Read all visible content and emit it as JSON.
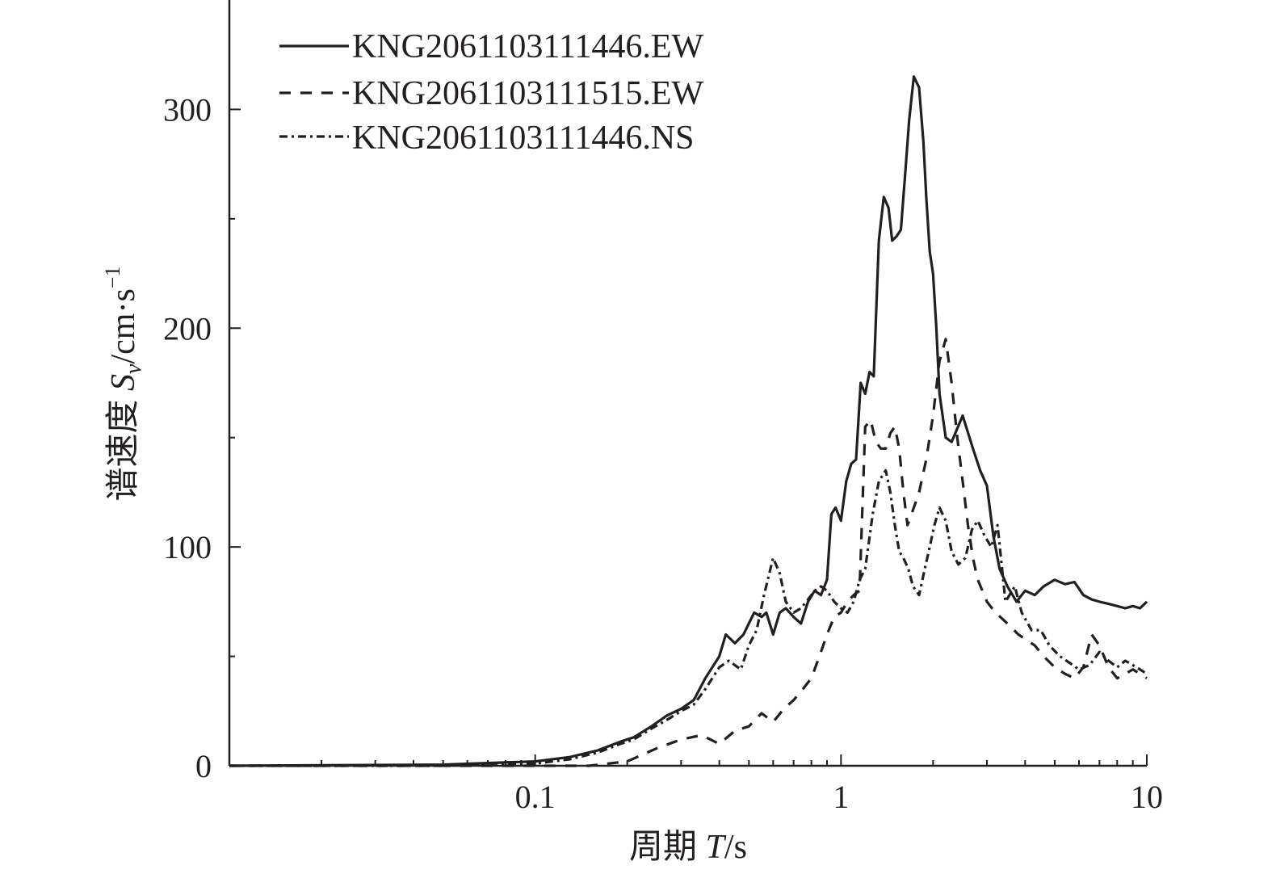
{
  "chart_data": {
    "type": "line",
    "title": "",
    "xlabel_prefix": "周期 ",
    "xlabel_var": "T",
    "xlabel_unit": "/s",
    "ylabel_prefix": "谱速度 ",
    "ylabel_var": "S",
    "ylabel_sub": "v",
    "ylabel_unit": "/cm·s",
    "ylabel_sup": "−1",
    "x_scale": "log",
    "xlim": [
      0.01,
      10
    ],
    "ylim": [
      0,
      350
    ],
    "x_ticks": [
      {
        "value": 0.1,
        "label": "0.1"
      },
      {
        "value": 1,
        "label": "1"
      },
      {
        "value": 10,
        "label": "10"
      }
    ],
    "y_ticks": [
      {
        "value": 0,
        "label": "0"
      },
      {
        "value": 100,
        "label": "100"
      },
      {
        "value": 200,
        "label": "200"
      },
      {
        "value": 300,
        "label": "300"
      }
    ],
    "grid": false,
    "legend_position": "top-left",
    "series": [
      {
        "name": "KNG2061103111446.EW",
        "dash": "solid",
        "x": [
          0.01,
          0.05,
          0.1,
          0.13,
          0.16,
          0.19,
          0.21,
          0.24,
          0.27,
          0.3,
          0.33,
          0.36,
          0.4,
          0.42,
          0.45,
          0.48,
          0.52,
          0.55,
          0.57,
          0.6,
          0.63,
          0.66,
          0.7,
          0.74,
          0.78,
          0.82,
          0.86,
          0.9,
          0.93,
          0.96,
          1.0,
          1.04,
          1.08,
          1.12,
          1.16,
          1.2,
          1.24,
          1.28,
          1.33,
          1.38,
          1.43,
          1.47,
          1.52,
          1.57,
          1.62,
          1.67,
          1.73,
          1.8,
          1.86,
          1.9,
          1.95,
          2.0,
          2.05,
          2.1,
          2.2,
          2.3,
          2.5,
          2.7,
          2.85,
          3.0,
          3.15,
          3.3,
          3.5,
          3.75,
          4.0,
          4.3,
          4.6,
          5.0,
          5.4,
          5.8,
          6.2,
          6.6,
          7.0,
          7.5,
          8.0,
          8.5,
          9.0,
          9.5,
          10.0
        ],
        "y": [
          0,
          0.5,
          2,
          4,
          7,
          11,
          13,
          18,
          23,
          26,
          30,
          40,
          50,
          60,
          56,
          60,
          70,
          68,
          70,
          60,
          70,
          72,
          68,
          65,
          75,
          80,
          78,
          85,
          115,
          118,
          112,
          130,
          138,
          140,
          175,
          170,
          180,
          178,
          240,
          260,
          255,
          240,
          242,
          245,
          270,
          295,
          315,
          310,
          285,
          260,
          235,
          225,
          200,
          170,
          150,
          148,
          160,
          145,
          135,
          128,
          105,
          90,
          82,
          75,
          80,
          78,
          82,
          85,
          83,
          84,
          78,
          76,
          75,
          74,
          73,
          72,
          73,
          72,
          75
        ]
      },
      {
        "name": "KNG2061103111515.EW",
        "dash": "14,12",
        "x": [
          0.01,
          0.1,
          0.15,
          0.2,
          0.25,
          0.3,
          0.35,
          0.4,
          0.45,
          0.5,
          0.55,
          0.6,
          0.65,
          0.7,
          0.75,
          0.8,
          0.85,
          0.9,
          0.95,
          1.0,
          1.05,
          1.1,
          1.15,
          1.2,
          1.25,
          1.3,
          1.35,
          1.4,
          1.45,
          1.5,
          1.55,
          1.6,
          1.65,
          1.7,
          1.75,
          1.8,
          1.9,
          2.0,
          2.1,
          2.2,
          2.3,
          2.4,
          2.5,
          2.6,
          2.7,
          2.8,
          2.9,
          3.0,
          3.2,
          3.5,
          3.8,
          4.0,
          4.3,
          4.6,
          5.0,
          5.4,
          5.8,
          6.2,
          6.6,
          7.0,
          7.5,
          8.0,
          8.5,
          9.0,
          9.5,
          10.0
        ],
        "y": [
          0,
          0,
          0,
          2,
          8,
          12,
          14,
          10,
          16,
          18,
          24,
          20,
          26,
          30,
          35,
          40,
          50,
          60,
          68,
          70,
          75,
          78,
          80,
          155,
          158,
          148,
          145,
          145,
          152,
          155,
          145,
          125,
          110,
          115,
          120,
          125,
          140,
          160,
          185,
          195,
          175,
          150,
          130,
          110,
          95,
          85,
          80,
          75,
          70,
          65,
          60,
          58,
          55,
          50,
          45,
          42,
          40,
          45,
          60,
          55,
          45,
          40,
          42,
          44,
          42,
          40
        ]
      },
      {
        "name": "KNG2061103111446.NS",
        "dash": "10,5,3,5",
        "x": [
          0.01,
          0.05,
          0.1,
          0.13,
          0.16,
          0.19,
          0.21,
          0.24,
          0.27,
          0.3,
          0.33,
          0.36,
          0.4,
          0.43,
          0.47,
          0.5,
          0.53,
          0.56,
          0.6,
          0.63,
          0.66,
          0.7,
          0.74,
          0.78,
          0.82,
          0.86,
          0.9,
          0.95,
          1.0,
          1.05,
          1.1,
          1.15,
          1.2,
          1.27,
          1.33,
          1.4,
          1.45,
          1.5,
          1.55,
          1.6,
          1.66,
          1.72,
          1.8,
          1.88,
          1.95,
          2.02,
          2.1,
          2.2,
          2.3,
          2.42,
          2.55,
          2.68,
          2.8,
          2.95,
          3.1,
          3.25,
          3.45,
          3.7,
          3.9,
          4.2,
          4.5,
          4.8,
          5.2,
          5.6,
          6.0,
          6.5,
          7.0,
          7.5,
          8.0,
          8.5,
          9.0,
          9.5,
          10.0
        ],
        "y": [
          0,
          0,
          1,
          3,
          6,
          10,
          12,
          17,
          21,
          25,
          28,
          35,
          45,
          48,
          44,
          55,
          62,
          78,
          95,
          88,
          75,
          70,
          72,
          76,
          80,
          82,
          80,
          75,
          72,
          70,
          75,
          85,
          90,
          115,
          130,
          135,
          125,
          110,
          98,
          95,
          90,
          82,
          78,
          90,
          100,
          110,
          118,
          112,
          98,
          92,
          95,
          108,
          112,
          105,
          100,
          110,
          75,
          82,
          70,
          62,
          62,
          55,
          50,
          47,
          44,
          46,
          52,
          48,
          45,
          48,
          46,
          44,
          42
        ]
      }
    ]
  }
}
